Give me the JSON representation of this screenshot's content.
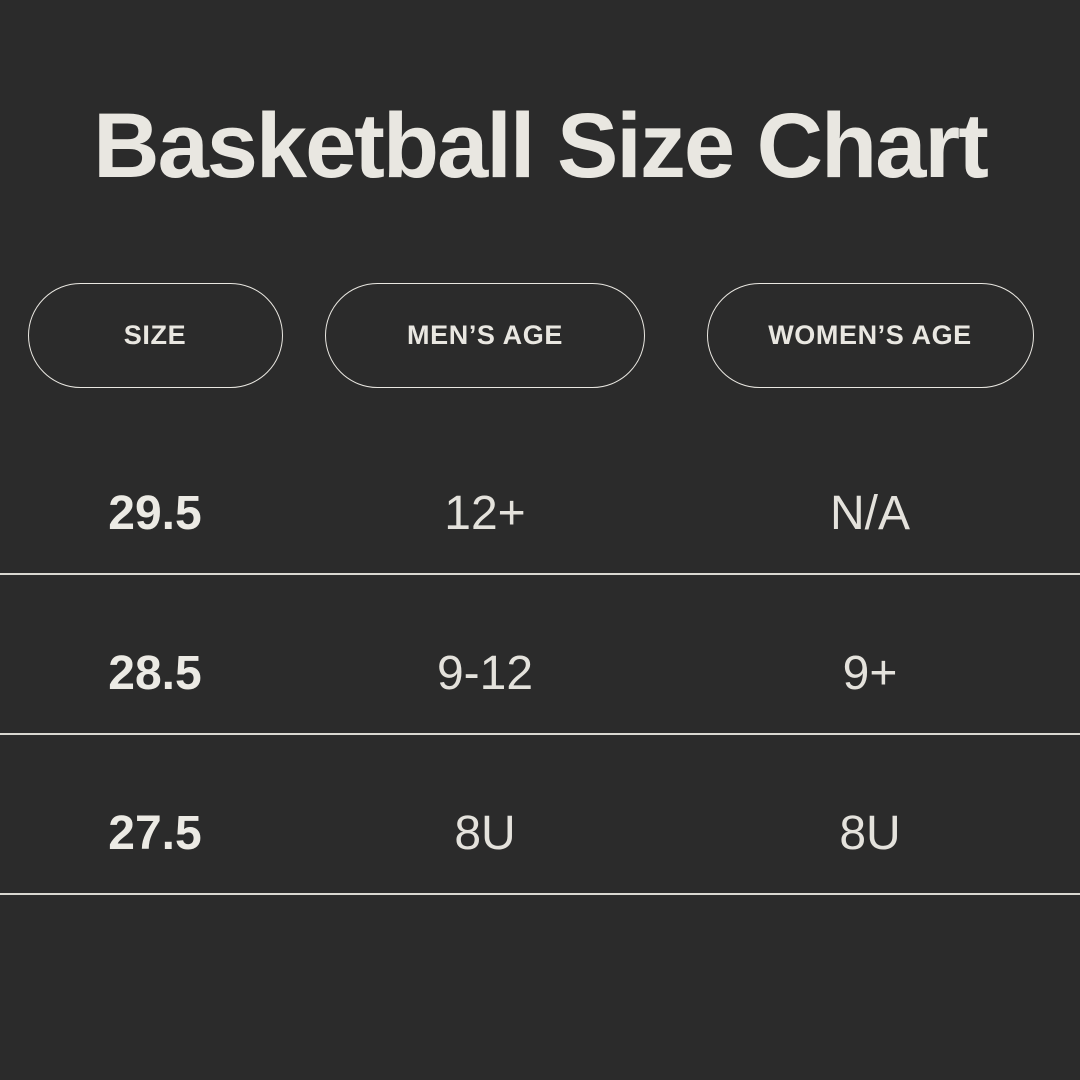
{
  "title": "Basketball Size Chart",
  "colors": {
    "background": "#2b2b2b",
    "text": "#e9e7e1",
    "divider": "#d9d7d1",
    "pill_border": "#e9e7e1"
  },
  "chart_data": {
    "type": "table",
    "title": "Basketball Size Chart",
    "columns": [
      "SIZE",
      "MEN’S AGE",
      "WOMEN’S AGE"
    ],
    "rows": [
      [
        "29.5",
        "12+",
        "N/A"
      ],
      [
        "28.5",
        "9-12",
        "9+"
      ],
      [
        "27.5",
        "8U",
        "8U"
      ]
    ],
    "layout_hints": {
      "header_style": "outlined-pill",
      "row_dividers": true,
      "theme": "dark"
    }
  }
}
